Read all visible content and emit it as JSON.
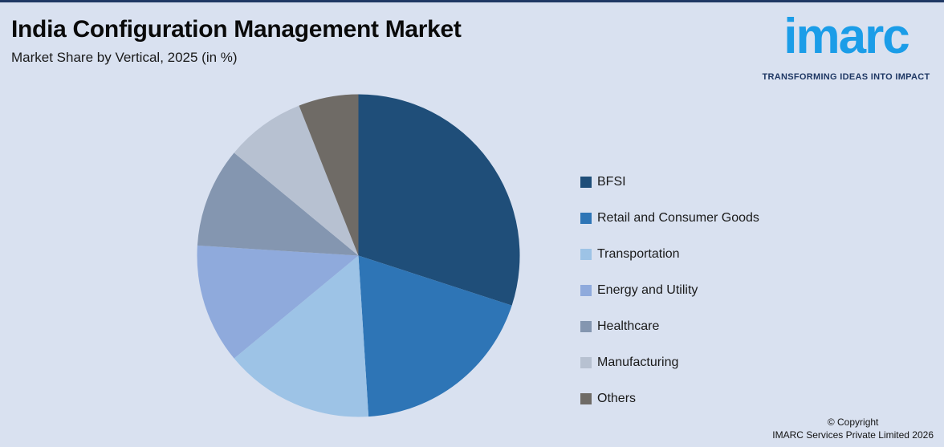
{
  "page": {
    "background_color": "#D9E1F0",
    "top_bar_color": "#1F3864"
  },
  "header": {
    "title": "India Configuration Management Market",
    "subtitle": "Market Share by Vertical, 2025 (in %)"
  },
  "logo": {
    "word": "imarc",
    "tagline": "TRANSFORMING IDEAS INTO IMPACT",
    "brand_color": "#1B9DE8",
    "tagline_color": "#1F3864"
  },
  "chart_data": {
    "type": "pie",
    "title": "India Configuration Management Market",
    "subtitle": "Market Share by Vertical, 2025 (in %)",
    "unit": "%",
    "start_angle_deg": 0,
    "direction": "clockwise",
    "legend_position": "right",
    "data_labels_shown": false,
    "slices": [
      {
        "label": "BFSI",
        "value": 30,
        "color": "#1F4E79"
      },
      {
        "label": "Retail and Consumer Goods",
        "value": 19,
        "color": "#2E75B6"
      },
      {
        "label": "Transportation",
        "value": 15,
        "color": "#9DC3E6"
      },
      {
        "label": "Energy and Utility",
        "value": 12,
        "color": "#8FAADC"
      },
      {
        "label": "Healthcare",
        "value": 10,
        "color": "#8496B0"
      },
      {
        "label": "Manufacturing",
        "value": 8,
        "color": "#B7C1D1"
      },
      {
        "label": "Others",
        "value": 6,
        "color": "#6F6B66"
      }
    ]
  },
  "footer": {
    "copyright_line1": "© Copyright",
    "copyright_line2": "IMARC Services Private Limited 2026"
  }
}
